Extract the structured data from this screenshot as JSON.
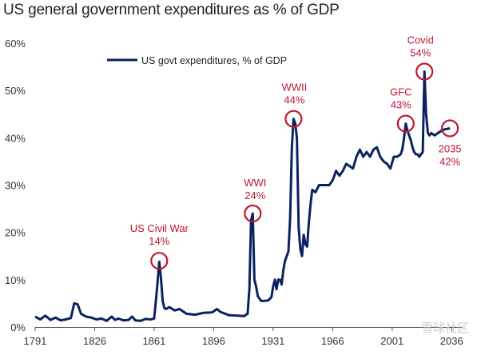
{
  "title": "US general government expenditures as % of GDP",
  "colors": {
    "series": "#0b2260",
    "annotation": "#c0152f",
    "axis": "#333333"
  },
  "chart_data": {
    "type": "line",
    "title": "US general government expenditures as % of GDP",
    "xlabel": "",
    "ylabel": "",
    "xlim": [
      1791,
      2042
    ],
    "ylim": [
      0,
      60
    ],
    "y_ticks": [
      "0%",
      "10%",
      "20%",
      "30%",
      "40%",
      "50%",
      "60%"
    ],
    "y_tick_values": [
      0,
      10,
      20,
      30,
      40,
      50,
      60
    ],
    "x_ticks": [
      "1791",
      "1826",
      "1861",
      "1896",
      "1931",
      "1966",
      "2001",
      "2036"
    ],
    "x_tick_values": [
      1791,
      1826,
      1861,
      1896,
      1931,
      1966,
      2001,
      2036
    ],
    "grid": false,
    "legend": "top-left",
    "series": [
      {
        "name": "US govt expenditures, % of GDP",
        "x": [
          1791,
          1794,
          1797,
          1800,
          1803,
          1806,
          1809,
          1812,
          1814,
          1816,
          1818,
          1821,
          1824,
          1827,
          1830,
          1833,
          1836,
          1838,
          1840,
          1843,
          1846,
          1848,
          1850,
          1853,
          1856,
          1859,
          1861,
          1862,
          1863,
          1864,
          1865,
          1866,
          1867,
          1868,
          1870,
          1873,
          1876,
          1880,
          1885,
          1890,
          1895,
          1898,
          1900,
          1905,
          1910,
          1914,
          1915,
          1916,
          1917,
          1918,
          1919,
          1920,
          1921,
          1922,
          1924,
          1928,
          1930,
          1931,
          1932,
          1933,
          1934,
          1935,
          1936,
          1937,
          1938,
          1939,
          1940,
          1941,
          1942,
          1943,
          1944,
          1945,
          1946,
          1947,
          1948,
          1949,
          1950,
          1951,
          1952,
          1953,
          1954,
          1956,
          1958,
          1960,
          1962,
          1964,
          1966,
          1968,
          1970,
          1972,
          1974,
          1976,
          1978,
          1980,
          1982,
          1984,
          1986,
          1988,
          1990,
          1992,
          1994,
          1996,
          1998,
          2000,
          2002,
          2004,
          2006,
          2007,
          2008,
          2009,
          2010,
          2011,
          2012,
          2013,
          2014,
          2015,
          2016,
          2017,
          2018,
          2019,
          2020,
          2021,
          2022,
          2023,
          2024,
          2026,
          2028,
          2030,
          2032,
          2035
        ],
        "y": [
          2.2,
          1.6,
          2.4,
          1.5,
          2.0,
          1.4,
          1.6,
          1.9,
          5.0,
          4.8,
          2.8,
          2.2,
          2.0,
          1.6,
          1.8,
          1.3,
          2.2,
          1.5,
          1.8,
          1.4,
          1.5,
          2.2,
          1.4,
          1.3,
          1.7,
          1.6,
          1.8,
          5.5,
          9.5,
          13.8,
          10.5,
          5.5,
          4.0,
          3.8,
          4.2,
          3.5,
          3.8,
          2.8,
          2.6,
          3.0,
          3.1,
          3.8,
          3.2,
          2.5,
          2.4,
          2.3,
          2.6,
          2.8,
          8.0,
          22.5,
          24.0,
          10.0,
          8.5,
          6.5,
          5.5,
          5.6,
          6.3,
          8.5,
          10.0,
          8.0,
          10.0,
          10.0,
          9.0,
          12.0,
          14.0,
          15.0,
          16.0,
          23.0,
          38.0,
          44.0,
          43.0,
          40.0,
          21.0,
          16.5,
          15.0,
          19.5,
          17.5,
          17.0,
          22.0,
          26.0,
          29.0,
          28.5,
          30.0,
          30.0,
          30.0,
          30.0,
          31.0,
          33.0,
          32.0,
          33.0,
          34.5,
          34.0,
          33.5,
          36.0,
          37.5,
          36.0,
          37.0,
          36.0,
          37.5,
          38.0,
          36.0,
          35.0,
          34.5,
          33.5,
          36.0,
          36.0,
          36.5,
          37.5,
          40.0,
          43.0,
          41.5,
          40.5,
          39.5,
          38.0,
          37.0,
          36.5,
          36.5,
          36.0,
          36.5,
          37.0,
          54.0,
          45.0,
          41.0,
          40.5,
          41.0,
          40.5,
          41.0,
          41.5,
          41.8,
          42.0
        ]
      }
    ],
    "annotations": [
      {
        "label": "US Civil War",
        "value_label": "14%",
        "x": 1864,
        "y": 14
      },
      {
        "label": "WWI",
        "value_label": "24%",
        "x": 1919,
        "y": 24
      },
      {
        "label": "WWII",
        "value_label": "44%",
        "x": 1943,
        "y": 44
      },
      {
        "label": "GFC",
        "value_label": "43%",
        "x": 2009,
        "y": 43
      },
      {
        "label": "Covid",
        "value_label": "54%",
        "x": 2020,
        "y": 54
      },
      {
        "label": "2035",
        "value_label": "42%",
        "x": 2035,
        "y": 42
      }
    ]
  },
  "watermark": "雪球社区"
}
